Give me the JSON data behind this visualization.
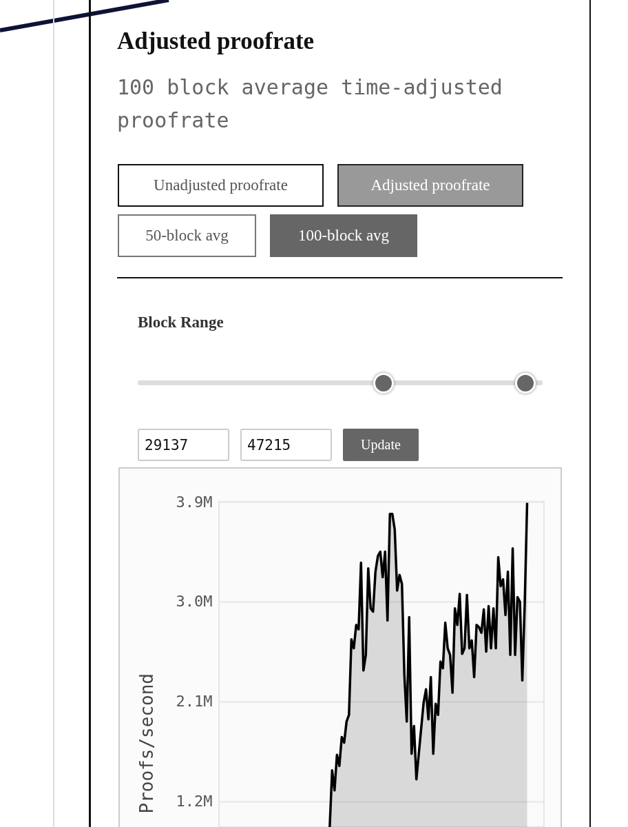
{
  "chart_data": {
    "type": "area",
    "title": "Adjusted proofrate",
    "subtitle": "100 block average time-adjusted proofrate",
    "ylabel": "Proofs/second",
    "annotations": [
      "Unadjusted proofrate",
      "Adjusted proofrate",
      "50-block avg",
      "100-block avg",
      "Block Range",
      "29137",
      "47215",
      "Update"
    ],
    "categories": [
      null,
      null,
      null,
      null,
      null,
      null,
      null,
      null,
      null,
      null,
      null,
      null,
      null,
      null,
      null,
      null,
      null,
      null,
      null,
      null,
      null,
      null,
      null,
      null,
      null,
      null,
      null,
      null,
      null,
      null,
      null,
      null,
      null,
      null,
      null,
      null,
      null,
      null,
      null,
      null,
      null,
      null,
      null,
      null,
      null,
      null,
      null,
      null,
      null,
      null,
      null,
      null,
      null,
      null,
      null,
      null,
      null,
      null,
      null,
      null,
      null,
      null,
      null,
      null,
      null,
      null,
      null,
      null,
      null,
      null,
      null,
      null,
      null,
      null,
      null,
      null,
      null,
      null,
      null,
      null,
      null,
      null,
      null,
      null,
      null,
      null,
      null,
      null,
      null,
      null,
      null,
      null,
      null,
      null,
      null,
      null,
      null,
      null,
      null,
      null,
      null,
      null,
      null,
      null,
      null,
      null,
      null,
      null,
      null,
      null,
      null,
      null,
      null,
      null,
      null,
      null,
      null,
      null,
      null,
      null,
      null,
      null,
      null,
      null,
      null,
      null,
      null,
      null,
      null,
      null,
      null,
      null,
      null,
      null,
      null,
      null
    ],
    "series": [
      {
        "color": "#000000",
        "values": [
          null,
          null,
          null,
          null,
          null,
          null,
          null,
          null,
          null,
          null,
          null,
          null,
          null,
          null,
          null,
          null,
          null,
          null,
          null,
          null,
          null,
          null,
          null,
          null,
          null,
          null,
          null,
          null,
          null,
          null,
          null,
          null,
          null,
          null,
          null,
          null,
          null,
          null,
          null,
          null,
          null,
          null,
          null,
          null,
          null,
          null,
          0.97,
          1.48,
          1.3,
          1.62,
          1.52,
          1.78,
          1.73,
          1.92,
          1.98,
          2.66,
          2.58,
          2.79,
          2.75,
          3.35,
          2.38,
          2.52,
          3.3,
          2.94,
          2.91,
          3.27,
          3.41,
          3.45,
          3.22,
          3.45,
          2.83,
          3.79,
          3.79,
          3.65,
          3.1,
          3.24,
          3.16,
          2.34,
          1.92,
          2.86,
          1.63,
          1.88,
          1.4,
          1.63,
          1.86,
          2.09,
          2.21,
          1.94,
          2.32,
          1.63,
          2.08,
          1.98,
          2.46,
          2.4,
          2.81,
          2.58,
          2.52,
          2.18,
          2.94,
          2.79,
          3.07,
          2.53,
          2.58,
          3.06,
          2.58,
          2.65,
          2.32,
          2.79,
          2.77,
          2.72,
          2.93,
          2.55,
          2.96,
          2.58,
          2.94,
          2.58,
          3.4,
          3.14,
          3.2,
          2.88,
          3.27,
          2.52,
          3.48,
          2.52,
          3.04,
          3.0,
          2.29,
          2.98,
          3.89,
          null,
          null,
          null,
          null,
          null,
          null,
          null
        ]
      }
    ],
    "ylim": [
      0.97,
      3.9
    ],
    "yticks": [
      {
        "value": 1.2,
        "label": "1.2M"
      },
      {
        "value": 2.1,
        "label": "2.1M"
      },
      {
        "value": 3.0,
        "label": "3.0M"
      },
      {
        "value": 3.9,
        "label": "3.9M"
      }
    ],
    "grid": "y",
    "tick_labels": "y"
  }
}
